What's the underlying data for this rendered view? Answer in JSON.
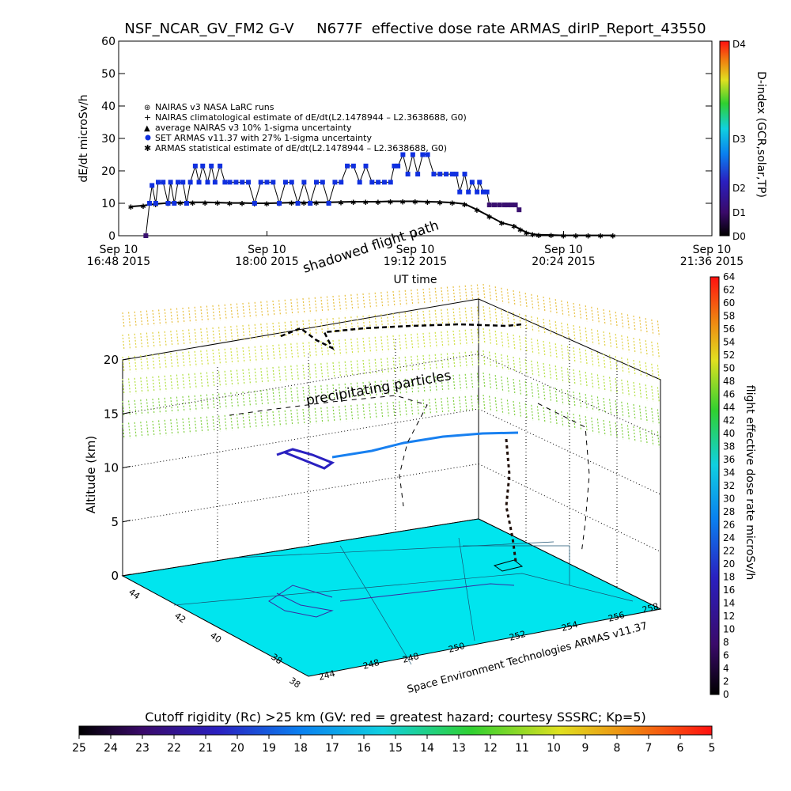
{
  "top_title": "NSF_NCAR_GV_FM2 G-V     N677F  effective dose rate ARMAS_dirIP_Report_43550",
  "chart_data": [
    {
      "type": "scatter",
      "title": "NSF_NCAR_GV_FM2 G-V     N677F  effective dose rate ARMAS_dirIP_Report_43550",
      "ylabel": "dE/dt microSv/h",
      "xlabel": "UT time",
      "ylim": [
        0,
        60
      ],
      "yticks": [
        "0",
        "10",
        "20",
        "30",
        "40",
        "50",
        "60"
      ],
      "xticks": [
        {
          "line1": "Sep 10",
          "line2": "16:48 2015"
        },
        {
          "line1": "Sep 10",
          "line2": "18:00 2015"
        },
        {
          "line1": "Sep 10",
          "line2": "19:12 2015"
        },
        {
          "line1": "Sep 10",
          "line2": "20:24 2015"
        },
        {
          "line1": "Sep 10",
          "line2": "21:36 2015"
        }
      ],
      "xrange_hours": [
        16.8,
        21.6
      ],
      "legend": [
        "NAIRAS v3 NASA LaRC runs",
        "NAIRAS climatological estimate of dE/dt(L2.1478944 – L2.3638688, G0)",
        "average NAIRAS v3 10% 1-sigma uncertainty",
        "SET ARMAS v11.37 with 27% 1-sigma uncertainty",
        "ARMAS statistical estimate of dE/dt(L2.1478944 – L2.3638688, G0)"
      ],
      "legend_placement": "upper-left",
      "series": [
        {
          "name": "SET ARMAS v11.37 with 27% 1-sigma uncertainty",
          "color": "#1030e0",
          "points": [
            [
              17.02,
              0
            ],
            [
              17.05,
              10
            ],
            [
              17.07,
              15.5
            ],
            [
              17.1,
              10
            ],
            [
              17.12,
              16.5
            ],
            [
              17.16,
              16.5
            ],
            [
              17.2,
              10
            ],
            [
              17.22,
              16.5
            ],
            [
              17.25,
              10
            ],
            [
              17.28,
              16.5
            ],
            [
              17.32,
              16.5
            ],
            [
              17.35,
              10
            ],
            [
              17.38,
              16.5
            ],
            [
              17.42,
              21.5
            ],
            [
              17.45,
              16.5
            ],
            [
              17.48,
              21.5
            ],
            [
              17.52,
              16.5
            ],
            [
              17.55,
              21.5
            ],
            [
              17.58,
              16.5
            ],
            [
              17.62,
              21.5
            ],
            [
              17.66,
              16.5
            ],
            [
              17.7,
              16.5
            ],
            [
              17.75,
              16.5
            ],
            [
              17.8,
              16.5
            ],
            [
              17.85,
              16.5
            ],
            [
              17.9,
              10
            ],
            [
              17.95,
              16.5
            ],
            [
              18.0,
              16.5
            ],
            [
              18.05,
              16.5
            ],
            [
              18.1,
              10
            ],
            [
              18.15,
              16.5
            ],
            [
              18.2,
              16.5
            ],
            [
              18.25,
              10
            ],
            [
              18.3,
              16.5
            ],
            [
              18.35,
              10
            ],
            [
              18.4,
              16.5
            ],
            [
              18.45,
              16.5
            ],
            [
              18.5,
              10
            ],
            [
              18.55,
              16.5
            ],
            [
              18.6,
              16.5
            ],
            [
              18.65,
              21.5
            ],
            [
              18.7,
              21.5
            ],
            [
              18.75,
              16.5
            ],
            [
              18.8,
              21.5
            ],
            [
              18.85,
              16.5
            ],
            [
              18.9,
              16.5
            ],
            [
              18.95,
              16.5
            ],
            [
              19.0,
              16.5
            ],
            [
              19.03,
              21.5
            ],
            [
              19.06,
              21.5
            ],
            [
              19.1,
              25
            ],
            [
              19.14,
              19
            ],
            [
              19.18,
              25
            ],
            [
              19.22,
              19
            ],
            [
              19.26,
              25
            ],
            [
              19.3,
              25
            ],
            [
              19.35,
              19
            ],
            [
              19.4,
              19
            ],
            [
              19.45,
              19
            ],
            [
              19.5,
              19
            ],
            [
              19.53,
              19
            ],
            [
              19.56,
              13.5
            ],
            [
              19.6,
              19
            ],
            [
              19.63,
              13.5
            ],
            [
              19.66,
              16.5
            ],
            [
              19.7,
              13.5
            ],
            [
              19.72,
              16.5
            ],
            [
              19.75,
              13.5
            ],
            [
              19.78,
              13.5
            ],
            [
              19.8,
              9.5
            ],
            [
              19.84,
              9.5
            ],
            [
              19.88,
              9.5
            ],
            [
              19.92,
              9.5
            ],
            [
              19.95,
              9.5
            ],
            [
              19.98,
              9.5
            ],
            [
              20.01,
              9.5
            ],
            [
              20.04,
              8
            ]
          ]
        },
        {
          "name": "ARMAS statistical estimate of dE/dt(L2.1478944 – L2.3638688, G0)",
          "color": "#000000",
          "points": [
            [
              16.9,
              9
            ],
            [
              17.0,
              9.3
            ],
            [
              17.1,
              9.8
            ],
            [
              17.2,
              10.1
            ],
            [
              17.3,
              10.2
            ],
            [
              17.4,
              10.3
            ],
            [
              17.5,
              10.3
            ],
            [
              17.6,
              10.2
            ],
            [
              17.7,
              10.1
            ],
            [
              17.8,
              10.1
            ],
            [
              17.9,
              10
            ],
            [
              18.0,
              10
            ],
            [
              18.1,
              10.1
            ],
            [
              18.2,
              10.2
            ],
            [
              18.3,
              10.2
            ],
            [
              18.4,
              10.3
            ],
            [
              18.5,
              10.3
            ],
            [
              18.6,
              10.4
            ],
            [
              18.7,
              10.5
            ],
            [
              18.8,
              10.5
            ],
            [
              18.9,
              10.5
            ],
            [
              19.0,
              10.6
            ],
            [
              19.1,
              10.6
            ],
            [
              19.2,
              10.6
            ],
            [
              19.3,
              10.5
            ],
            [
              19.4,
              10.4
            ],
            [
              19.5,
              10.2
            ],
            [
              19.6,
              9.8
            ],
            [
              19.7,
              8
            ],
            [
              19.8,
              6
            ],
            [
              19.9,
              4
            ],
            [
              20.0,
              3
            ],
            [
              20.05,
              2
            ],
            [
              20.1,
              1
            ],
            [
              20.15,
              0.5
            ],
            [
              20.2,
              0.3
            ],
            [
              20.3,
              0.2
            ],
            [
              20.4,
              0.1
            ],
            [
              20.5,
              0.1
            ],
            [
              20.6,
              0.1
            ],
            [
              20.7,
              0.1
            ],
            [
              20.8,
              0.1
            ]
          ]
        }
      ],
      "colorbar": {
        "label": "D-index (GCR,solar,TP)",
        "ticks": [
          "D0",
          "D1",
          "D2",
          "D3",
          "D4"
        ]
      }
    },
    {
      "type": "scatter",
      "annotations": [
        "shadowed flight path",
        "precipitating particles"
      ],
      "zlabel": "Altitude (km)",
      "zlim": [
        0,
        20
      ],
      "zticks": [
        "0",
        "5",
        "10",
        "15",
        "20"
      ],
      "lat_ticks": [
        "38",
        "38",
        "40",
        "42",
        "44"
      ],
      "lon_ticks": [
        "244",
        "248",
        "248",
        "250",
        "252",
        "254",
        "256",
        "258"
      ],
      "footer": "Space Environment Technologies ARMAS v11.37",
      "colorbar": {
        "label": "flight effective dose rate microSv/h",
        "range": [
          0,
          64
        ],
        "ticks": [
          "0",
          "2",
          "4",
          "6",
          "8",
          "10",
          "12",
          "14",
          "16",
          "18",
          "20",
          "22",
          "24",
          "26",
          "28",
          "30",
          "32",
          "34",
          "36",
          "38",
          "40",
          "42",
          "44",
          "46",
          "48",
          "50",
          "52",
          "54",
          "56",
          "58",
          "60",
          "62",
          "64"
        ]
      }
    },
    {
      "type": "heatmap",
      "title": "Cutoff rigidity (Rc) >25 km (GV: red = greatest hazard; courtesy SSSRC; Kp=5)",
      "range": [
        25,
        5
      ],
      "ticks": [
        "25",
        "24",
        "23",
        "22",
        "21",
        "20",
        "19",
        "18",
        "17",
        "16",
        "15",
        "14",
        "13",
        "12",
        "11",
        "10",
        "9",
        "8",
        "7",
        "6",
        "5"
      ]
    }
  ],
  "surface_color": "#00e5ee"
}
